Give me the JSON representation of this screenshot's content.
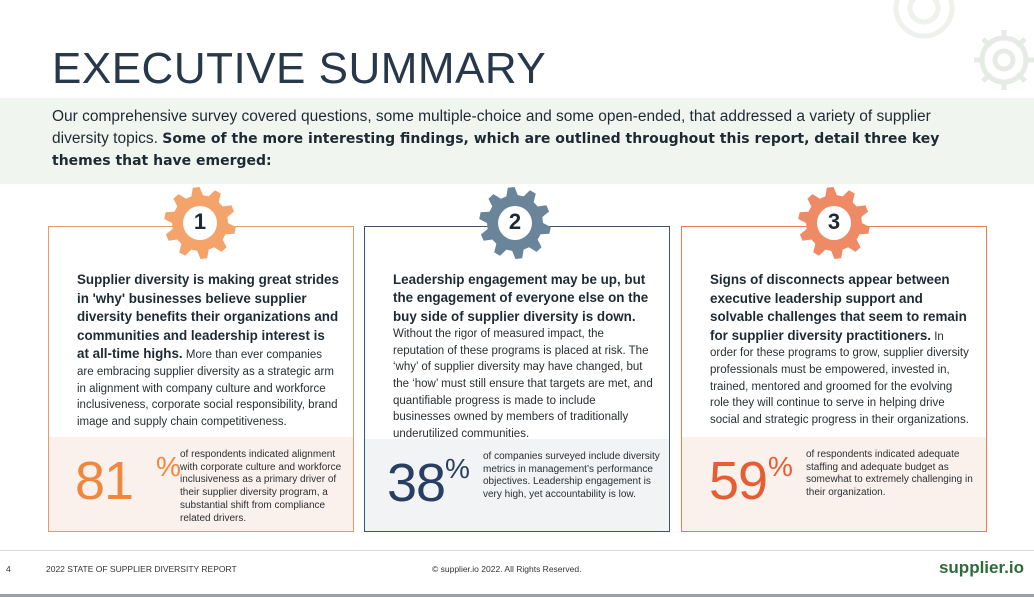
{
  "header": {
    "title": "EXECUTIVE SUMMARY"
  },
  "intro": {
    "text": "Our comprehensive survey covered questions, some multiple-choice and some open-ended, that addressed a variety of supplier diversity topics. ",
    "bold": "Some of the more interesting findings, which are outlined throughout this report, detail three key themes that have emerged:"
  },
  "themes": [
    {
      "number": "1",
      "lead": "Supplier diversity is making great strides in 'why' businesses believe supplier diversity benefits their organizations and communities and leadership interest is at all-time highs.",
      "body": "More than ever companies are embracing supplier diversity as a strategic arm in alignment with company culture and workforce inclusiveness, corporate social responsibility, brand image and supply chain competitiveness.",
      "stat_value": "81",
      "stat_unit": "%",
      "stat_text": "of respondents indicated alignment with corporate culture and workforce inclusiveness as a primary driver of their supplier diversity program, a substantial shift from compliance related drivers.",
      "color": "#f0873e"
    },
    {
      "number": "2",
      "lead": "Leadership engagement may be up, but the engagement of everyone else on the buy side of supplier diversity is down.",
      "body": "Without the rigor of measured impact, the reputation of these programs is placed at risk. The ‘why’ of supplier diversity may have changed, but the ‘how’ must still ensure that targets are met, and quantifiable progress is made to include businesses owned by members of traditionally underutilized communities.",
      "stat_value": "38",
      "stat_unit": "%",
      "stat_text": "of companies surveyed include diversity metrics in management’s performance objectives. Leadership engagement is very high, yet accountability is low.",
      "color": "#283e63"
    },
    {
      "number": "3",
      "lead": "Signs of disconnects appear between executive leadership support and solvable challenges that seem to remain for supplier diversity practitioners.",
      "body": "In order for these programs to grow, supplier diversity professionals must be empowered, invested in, trained, mentored and groomed for the evolving role they will continue to serve in helping drive social and strategic progress in their organizations.",
      "stat_value": "59",
      "stat_unit": "%",
      "stat_text": "of respondents indicated adequate staffing and adequate budget as somewhat to extremely challenging in their organization.",
      "color": "#e65c33"
    }
  ],
  "footer": {
    "page": "4",
    "report": "2022 STATE OF SUPPLIER DIVERSITY REPORT",
    "copyright": "© supplier.io 2022. All Rights Reserved.",
    "brand": "supplier.io"
  }
}
